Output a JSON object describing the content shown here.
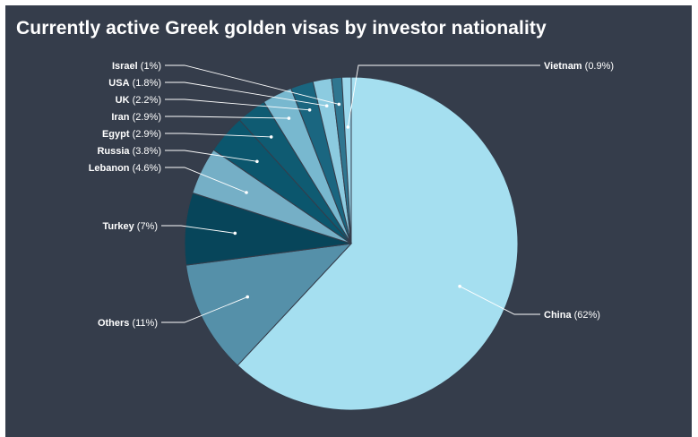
{
  "chart_data": {
    "type": "pie",
    "title": "Currently active Greek golden visas by investor nationality",
    "slices": [
      {
        "name": "China",
        "value": 62,
        "label": "(62%)",
        "color": "#a5dff0"
      },
      {
        "name": "Others",
        "value": 11,
        "label": "(11%)",
        "color": "#5590a9"
      },
      {
        "name": "Turkey",
        "value": 7,
        "label": "(7%)",
        "color": "#07455a"
      },
      {
        "name": "Lebanon",
        "value": 4.6,
        "label": "(4.6%)",
        "color": "#75afc6"
      },
      {
        "name": "Russia",
        "value": 3.8,
        "label": "(3.8%)",
        "color": "#0b566d"
      },
      {
        "name": "Egypt",
        "value": 2.9,
        "label": "(2.9%)",
        "color": "#0f5b72"
      },
      {
        "name": "Iran",
        "value": 2.9,
        "label": "(2.9%)",
        "color": "#78b8cf"
      },
      {
        "name": "UK",
        "value": 2.2,
        "label": "(2.2%)",
        "color": "#1a6680"
      },
      {
        "name": "USA",
        "value": 1.8,
        "label": "(1.8%)",
        "color": "#8ccbe0"
      },
      {
        "name": "Israel",
        "value": 1.0,
        "label": "(1%)",
        "color": "#2f7690"
      },
      {
        "name": "Vietnam",
        "value": 0.9,
        "label": "(0.9%)",
        "color": "#9bd8ec"
      }
    ]
  }
}
